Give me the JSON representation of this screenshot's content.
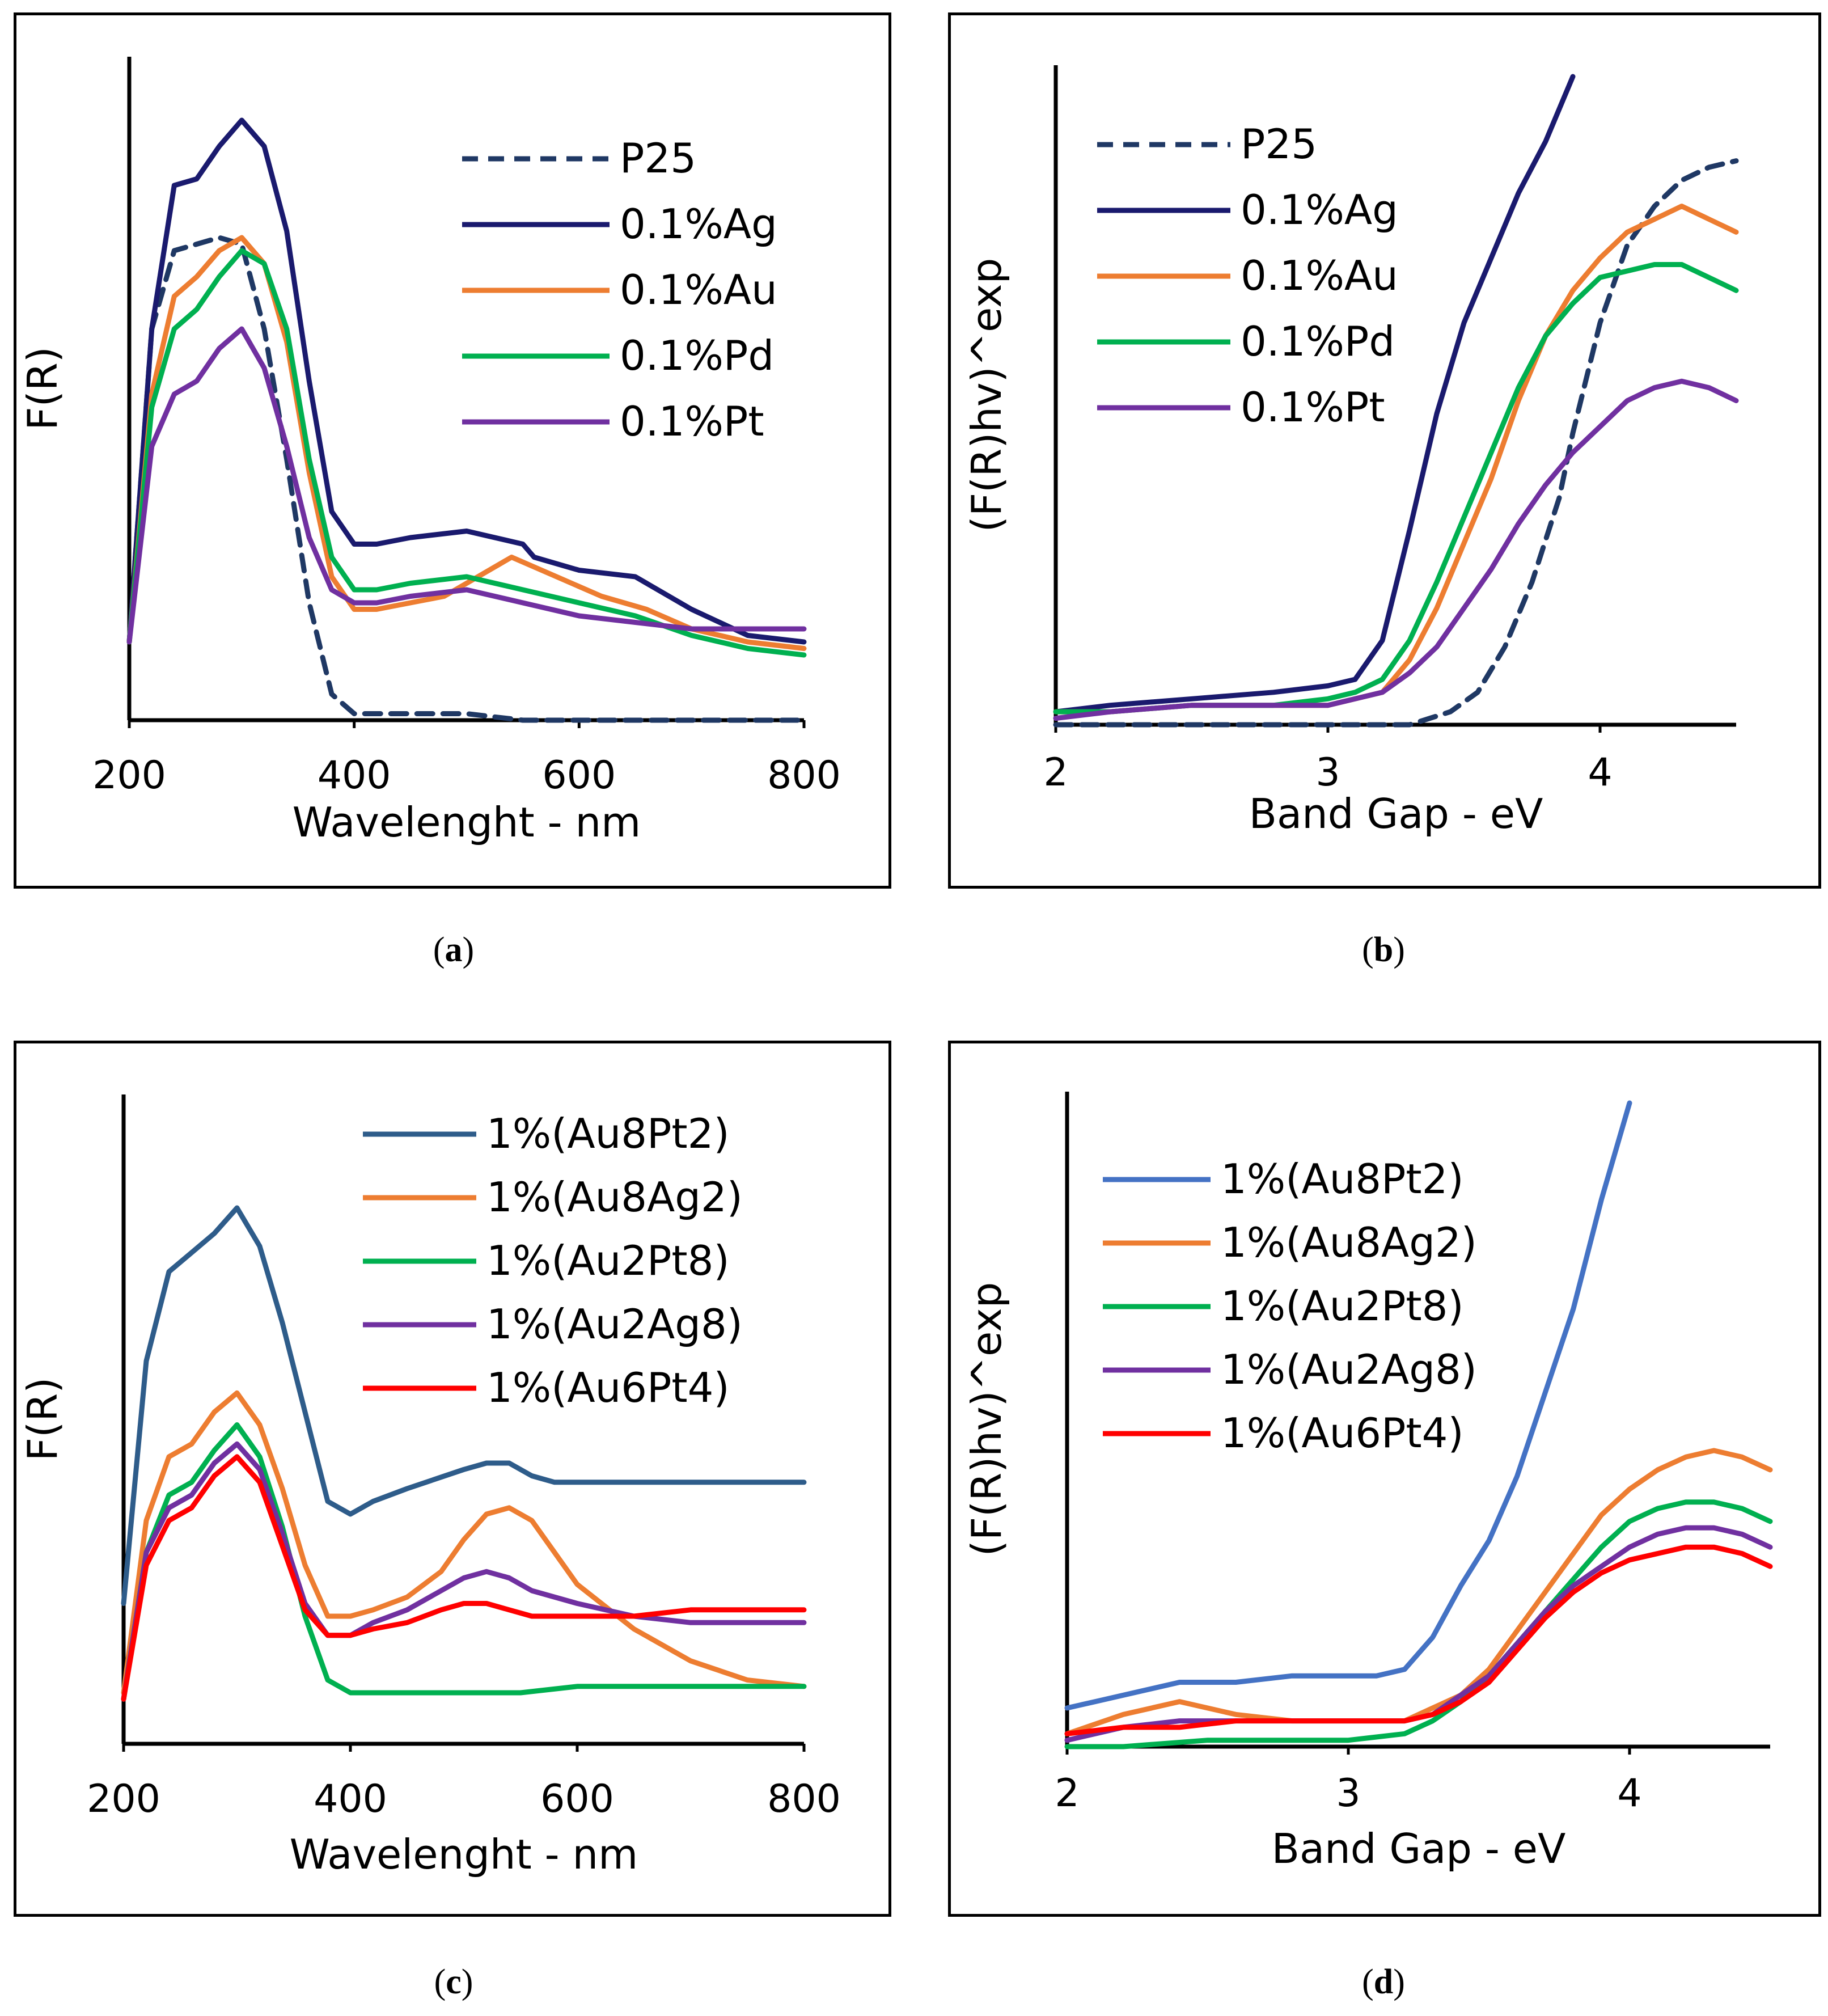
{
  "figure": {
    "captions": [
      "a",
      "b",
      "c",
      "d"
    ]
  },
  "chart_data": [
    {
      "id": "a",
      "type": "line",
      "title": "",
      "xlabel": "Wavelenght - nm",
      "ylabel": "F(R)",
      "xlim": [
        200,
        800
      ],
      "ylim": [
        0,
        1
      ],
      "xticks": [
        200,
        400,
        600,
        800
      ],
      "legend_position": "top-right",
      "series": [
        {
          "name": "P25",
          "color": "#1f3864",
          "dash": true,
          "x": [
            200,
            220,
            240,
            260,
            280,
            300,
            320,
            340,
            360,
            380,
            400,
            420,
            450,
            500,
            550,
            600,
            650,
            700,
            750,
            800
          ],
          "y": [
            0.12,
            0.6,
            0.72,
            0.73,
            0.74,
            0.73,
            0.6,
            0.4,
            0.18,
            0.04,
            0.01,
            0.01,
            0.01,
            0.01,
            0.0,
            0.0,
            0.0,
            0.0,
            0.0,
            0.0
          ]
        },
        {
          "name": "0.1%Ag",
          "color": "#1a1a6e",
          "dash": false,
          "x": [
            200,
            220,
            240,
            260,
            280,
            300,
            320,
            340,
            360,
            380,
            400,
            420,
            450,
            500,
            550,
            560,
            600,
            650,
            700,
            750,
            800
          ],
          "y": [
            0.12,
            0.6,
            0.82,
            0.83,
            0.88,
            0.92,
            0.88,
            0.75,
            0.52,
            0.32,
            0.27,
            0.27,
            0.28,
            0.29,
            0.27,
            0.25,
            0.23,
            0.22,
            0.17,
            0.13,
            0.12
          ]
        },
        {
          "name": "0.1%Au",
          "color": "#ed7d31",
          "dash": false,
          "x": [
            200,
            220,
            240,
            260,
            280,
            300,
            320,
            340,
            360,
            380,
            400,
            420,
            450,
            480,
            500,
            540,
            580,
            620,
            660,
            700,
            750,
            800
          ],
          "y": [
            0.12,
            0.5,
            0.65,
            0.68,
            0.72,
            0.74,
            0.7,
            0.58,
            0.38,
            0.22,
            0.17,
            0.17,
            0.18,
            0.19,
            0.21,
            0.25,
            0.22,
            0.19,
            0.17,
            0.14,
            0.12,
            0.11
          ]
        },
        {
          "name": "0.1%Pd",
          "color": "#00b050",
          "dash": false,
          "x": [
            200,
            220,
            240,
            260,
            280,
            300,
            320,
            340,
            360,
            380,
            400,
            420,
            450,
            500,
            550,
            600,
            650,
            700,
            750,
            800
          ],
          "y": [
            0.12,
            0.48,
            0.6,
            0.63,
            0.68,
            0.72,
            0.7,
            0.6,
            0.4,
            0.25,
            0.2,
            0.2,
            0.21,
            0.22,
            0.2,
            0.18,
            0.16,
            0.13,
            0.11,
            0.1
          ]
        },
        {
          "name": "0.1%Pt",
          "color": "#7030a0",
          "dash": false,
          "x": [
            200,
            220,
            240,
            260,
            280,
            300,
            320,
            340,
            360,
            380,
            400,
            420,
            450,
            500,
            550,
            600,
            650,
            700,
            750,
            800
          ],
          "y": [
            0.12,
            0.42,
            0.5,
            0.52,
            0.57,
            0.6,
            0.54,
            0.42,
            0.28,
            0.2,
            0.18,
            0.18,
            0.19,
            0.2,
            0.18,
            0.16,
            0.15,
            0.14,
            0.14,
            0.14
          ]
        }
      ]
    },
    {
      "id": "b",
      "type": "line",
      "title": "",
      "xlabel": "Band Gap - eV",
      "ylabel": "(F(R)hv)^exp",
      "xlim": [
        2,
        4.5
      ],
      "ylim": [
        0,
        1
      ],
      "xticks": [
        2,
        3,
        4
      ],
      "legend_position": "top-left",
      "series": [
        {
          "name": "P25",
          "color": "#1f3864",
          "dash": true,
          "x": [
            2.0,
            2.5,
            3.0,
            3.3,
            3.45,
            3.55,
            3.65,
            3.75,
            3.85,
            3.9,
            4.0,
            4.1,
            4.2,
            4.3,
            4.4,
            4.5
          ],
          "y": [
            0.0,
            0.0,
            0.0,
            0.0,
            0.02,
            0.05,
            0.12,
            0.22,
            0.35,
            0.45,
            0.62,
            0.74,
            0.8,
            0.84,
            0.86,
            0.87
          ]
        },
        {
          "name": "0.1%Ag",
          "color": "#1a1a6e",
          "dash": false,
          "x": [
            2.0,
            2.2,
            2.5,
            2.8,
            3.0,
            3.1,
            3.2,
            3.3,
            3.4,
            3.5,
            3.6,
            3.7,
            3.8,
            3.9
          ],
          "y": [
            0.02,
            0.03,
            0.04,
            0.05,
            0.06,
            0.07,
            0.13,
            0.3,
            0.48,
            0.62,
            0.72,
            0.82,
            0.9,
            1.0
          ]
        },
        {
          "name": "0.1%Au",
          "color": "#ed7d31",
          "dash": false,
          "x": [
            2.0,
            2.2,
            2.5,
            2.8,
            3.0,
            3.1,
            3.2,
            3.3,
            3.4,
            3.5,
            3.6,
            3.7,
            3.8,
            3.9,
            4.0,
            4.1,
            4.2,
            4.3,
            4.4,
            4.5
          ],
          "y": [
            0.02,
            0.02,
            0.03,
            0.03,
            0.03,
            0.04,
            0.05,
            0.1,
            0.18,
            0.28,
            0.38,
            0.5,
            0.6,
            0.67,
            0.72,
            0.76,
            0.78,
            0.8,
            0.78,
            0.76
          ]
        },
        {
          "name": "0.1%Pd",
          "color": "#00b050",
          "dash": false,
          "x": [
            2.0,
            2.2,
            2.5,
            2.8,
            3.0,
            3.1,
            3.2,
            3.3,
            3.4,
            3.5,
            3.6,
            3.7,
            3.8,
            3.9,
            4.0,
            4.1,
            4.2,
            4.3,
            4.4,
            4.5
          ],
          "y": [
            0.02,
            0.02,
            0.03,
            0.03,
            0.04,
            0.05,
            0.07,
            0.13,
            0.22,
            0.32,
            0.42,
            0.52,
            0.6,
            0.65,
            0.69,
            0.7,
            0.71,
            0.71,
            0.69,
            0.67
          ]
        },
        {
          "name": "0.1%Pt",
          "color": "#7030a0",
          "dash": false,
          "x": [
            2.0,
            2.2,
            2.5,
            2.8,
            3.0,
            3.1,
            3.2,
            3.3,
            3.4,
            3.5,
            3.6,
            3.7,
            3.8,
            3.9,
            4.0,
            4.1,
            4.2,
            4.3,
            4.4,
            4.5
          ],
          "y": [
            0.01,
            0.02,
            0.03,
            0.03,
            0.03,
            0.04,
            0.05,
            0.08,
            0.12,
            0.18,
            0.24,
            0.31,
            0.37,
            0.42,
            0.46,
            0.5,
            0.52,
            0.53,
            0.52,
            0.5
          ]
        }
      ]
    },
    {
      "id": "c",
      "type": "line",
      "title": "",
      "xlabel": "Wavelenght - nm",
      "ylabel": "F(R)",
      "xlim": [
        200,
        800
      ],
      "ylim": [
        0,
        1
      ],
      "xticks": [
        200,
        400,
        600,
        800
      ],
      "legend_position": "top-right",
      "series": [
        {
          "name": "1%(Au8Pt2)",
          "color": "#2e5c8a",
          "dash": false,
          "x": [
            200,
            220,
            240,
            260,
            280,
            300,
            320,
            340,
            360,
            380,
            400,
            420,
            450,
            500,
            520,
            540,
            560,
            580,
            600,
            650,
            700,
            750,
            800
          ],
          "y": [
            0.22,
            0.6,
            0.74,
            0.77,
            0.8,
            0.84,
            0.78,
            0.66,
            0.52,
            0.38,
            0.36,
            0.38,
            0.4,
            0.43,
            0.44,
            0.44,
            0.42,
            0.41,
            0.41,
            0.41,
            0.41,
            0.41,
            0.41
          ]
        },
        {
          "name": "1%(Au8Ag2)",
          "color": "#ed7d31",
          "dash": false,
          "x": [
            200,
            220,
            240,
            260,
            280,
            300,
            320,
            340,
            360,
            380,
            400,
            420,
            450,
            480,
            500,
            520,
            540,
            560,
            580,
            600,
            650,
            700,
            750,
            800
          ],
          "y": [
            0.08,
            0.35,
            0.45,
            0.47,
            0.52,
            0.55,
            0.5,
            0.4,
            0.28,
            0.2,
            0.2,
            0.21,
            0.23,
            0.27,
            0.32,
            0.36,
            0.37,
            0.35,
            0.3,
            0.25,
            0.18,
            0.13,
            0.1,
            0.09
          ]
        },
        {
          "name": "1%(Au2Pt8)",
          "color": "#00b050",
          "dash": false,
          "x": [
            200,
            220,
            240,
            260,
            280,
            300,
            320,
            340,
            360,
            380,
            400,
            450,
            500,
            550,
            600,
            650,
            700,
            750,
            800
          ],
          "y": [
            0.07,
            0.3,
            0.39,
            0.41,
            0.46,
            0.5,
            0.45,
            0.34,
            0.2,
            0.1,
            0.08,
            0.08,
            0.08,
            0.08,
            0.09,
            0.09,
            0.09,
            0.09,
            0.09
          ]
        },
        {
          "name": "1%(Au2Ag8)",
          "color": "#7030a0",
          "dash": false,
          "x": [
            200,
            220,
            240,
            260,
            280,
            300,
            320,
            340,
            360,
            380,
            400,
            420,
            450,
            480,
            500,
            520,
            540,
            560,
            600,
            650,
            700,
            750,
            800
          ],
          "y": [
            0.07,
            0.3,
            0.37,
            0.39,
            0.44,
            0.47,
            0.43,
            0.33,
            0.22,
            0.17,
            0.17,
            0.19,
            0.21,
            0.24,
            0.26,
            0.27,
            0.26,
            0.24,
            0.22,
            0.2,
            0.19,
            0.19,
            0.19
          ]
        },
        {
          "name": "1%(Au6Pt4)",
          "color": "#ff0000",
          "dash": false,
          "x": [
            200,
            220,
            240,
            260,
            280,
            300,
            320,
            340,
            360,
            380,
            400,
            420,
            450,
            480,
            500,
            520,
            540,
            560,
            600,
            650,
            700,
            750,
            800
          ],
          "y": [
            0.07,
            0.28,
            0.35,
            0.37,
            0.42,
            0.45,
            0.41,
            0.31,
            0.21,
            0.17,
            0.17,
            0.18,
            0.19,
            0.21,
            0.22,
            0.22,
            0.21,
            0.2,
            0.2,
            0.2,
            0.21,
            0.21,
            0.21
          ]
        }
      ]
    },
    {
      "id": "d",
      "type": "line",
      "title": "",
      "xlabel": "Band Gap - eV",
      "ylabel": "(F(R)hv)^exp",
      "xlim": [
        2,
        4.5
      ],
      "ylim": [
        0,
        1
      ],
      "xticks": [
        2,
        3,
        4
      ],
      "legend_position": "top-left",
      "series": [
        {
          "name": "1%(Au8Pt2)",
          "color": "#4472c4",
          "dash": false,
          "x": [
            2.0,
            2.1,
            2.2,
            2.4,
            2.6,
            2.8,
            3.0,
            3.1,
            3.2,
            3.3,
            3.35,
            3.4,
            3.5,
            3.6,
            3.7,
            3.8,
            3.9,
            4.0
          ],
          "y": [
            0.06,
            0.07,
            0.08,
            0.1,
            0.1,
            0.11,
            0.11,
            0.11,
            0.12,
            0.17,
            0.21,
            0.25,
            0.32,
            0.42,
            0.55,
            0.68,
            0.85,
            1.0
          ]
        },
        {
          "name": "1%(Au8Ag2)",
          "color": "#ed7d31",
          "dash": false,
          "x": [
            2.0,
            2.2,
            2.4,
            2.6,
            2.8,
            3.0,
            3.2,
            3.3,
            3.4,
            3.5,
            3.6,
            3.7,
            3.8,
            3.9,
            4.0,
            4.1,
            4.2,
            4.3,
            4.4,
            4.5
          ],
          "y": [
            0.02,
            0.05,
            0.07,
            0.05,
            0.04,
            0.04,
            0.04,
            0.06,
            0.08,
            0.12,
            0.18,
            0.24,
            0.3,
            0.36,
            0.4,
            0.43,
            0.45,
            0.46,
            0.45,
            0.43
          ]
        },
        {
          "name": "1%(Au2Pt8)",
          "color": "#00b050",
          "dash": false,
          "x": [
            2.0,
            2.2,
            2.5,
            2.8,
            3.0,
            3.2,
            3.3,
            3.4,
            3.5,
            3.6,
            3.7,
            3.8,
            3.9,
            4.0,
            4.1,
            4.2,
            4.3,
            4.4,
            4.5
          ],
          "y": [
            0.0,
            0.0,
            0.01,
            0.01,
            0.01,
            0.02,
            0.04,
            0.07,
            0.11,
            0.16,
            0.21,
            0.26,
            0.31,
            0.35,
            0.37,
            0.38,
            0.38,
            0.37,
            0.35
          ]
        },
        {
          "name": "1%(Au2Ag8)",
          "color": "#7030a0",
          "dash": false,
          "x": [
            2.0,
            2.2,
            2.4,
            2.6,
            2.8,
            3.0,
            3.2,
            3.3,
            3.4,
            3.5,
            3.6,
            3.7,
            3.8,
            3.9,
            4.0,
            4.1,
            4.2,
            4.3,
            4.4,
            4.5
          ],
          "y": [
            0.01,
            0.03,
            0.04,
            0.04,
            0.04,
            0.04,
            0.04,
            0.05,
            0.08,
            0.11,
            0.16,
            0.21,
            0.25,
            0.28,
            0.31,
            0.33,
            0.34,
            0.34,
            0.33,
            0.31
          ]
        },
        {
          "name": "1%(Au6Pt4)",
          "color": "#ff0000",
          "dash": false,
          "x": [
            2.0,
            2.2,
            2.4,
            2.6,
            2.8,
            3.0,
            3.2,
            3.3,
            3.4,
            3.5,
            3.6,
            3.7,
            3.8,
            3.9,
            4.0,
            4.1,
            4.2,
            4.3,
            4.4,
            4.5
          ],
          "y": [
            0.02,
            0.03,
            0.03,
            0.04,
            0.04,
            0.04,
            0.04,
            0.05,
            0.07,
            0.1,
            0.15,
            0.2,
            0.24,
            0.27,
            0.29,
            0.3,
            0.31,
            0.31,
            0.3,
            0.28
          ]
        }
      ]
    }
  ]
}
